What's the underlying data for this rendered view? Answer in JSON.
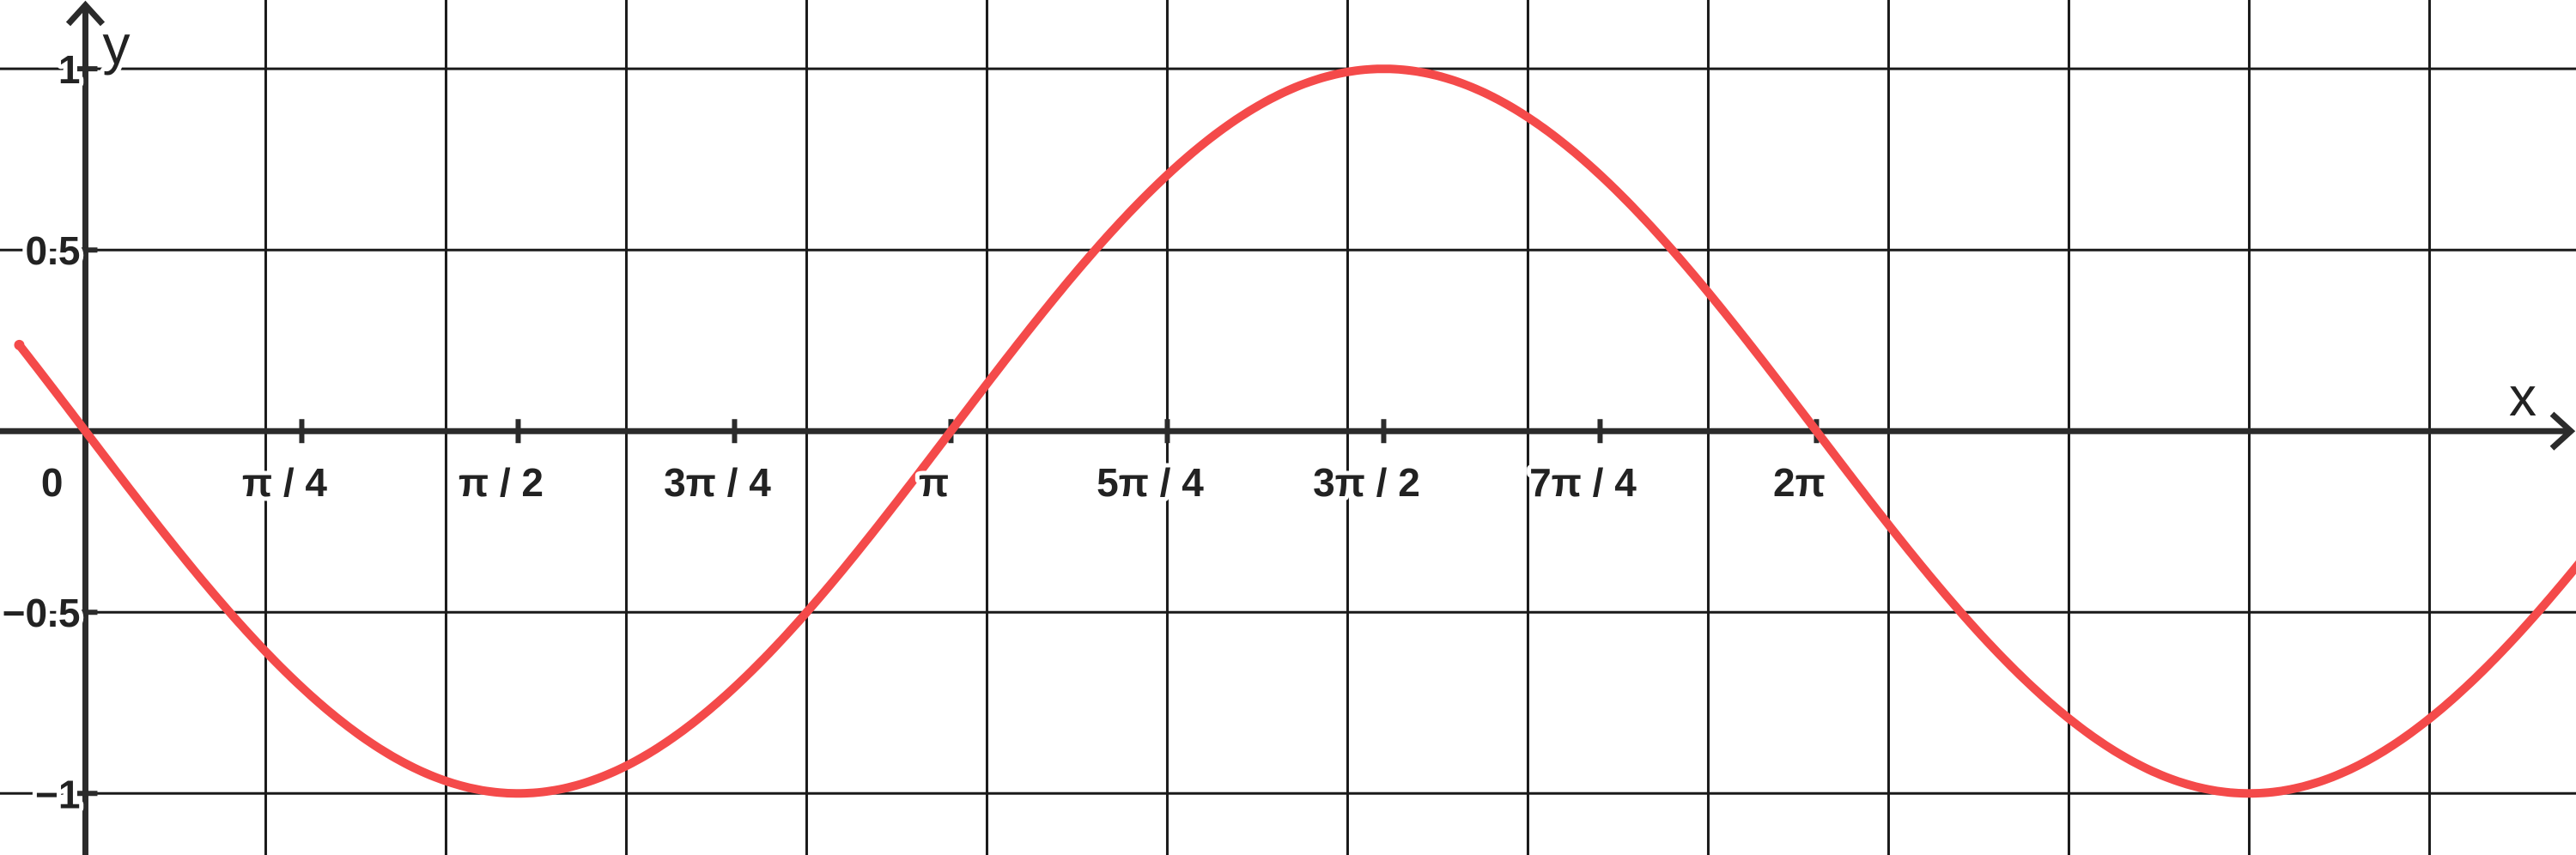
{
  "chart_data": {
    "type": "line",
    "function": "y = cos(x + π/2)",
    "xlabel": "x",
    "ylabel": "y",
    "xlim": [
      -0.31,
      9.04
    ],
    "ylim": [
      -1.17,
      1.19
    ],
    "grid": true,
    "x_grid_step": 0.6545,
    "y_grid_step": 0.5,
    "x_ticks": [
      {
        "value": 0.7854,
        "label": "π / 4"
      },
      {
        "value": 1.5708,
        "label": "π / 2"
      },
      {
        "value": 2.3562,
        "label": "3π / 4"
      },
      {
        "value": 3.1416,
        "label": "π"
      },
      {
        "value": 3.927,
        "label": "5π / 4"
      },
      {
        "value": 4.7124,
        "label": "3π / 2"
      },
      {
        "value": 5.4978,
        "label": "7π / 4"
      },
      {
        "value": 6.2832,
        "label": "2π"
      }
    ],
    "y_ticks": [
      {
        "value": 1,
        "label": "1"
      },
      {
        "value": 0.5,
        "label": "0.5"
      },
      {
        "value": -0.5,
        "label": "−0.5"
      },
      {
        "value": -1,
        "label": "−1"
      }
    ],
    "origin_label": "0",
    "series": [
      {
        "color": "#f44a4a",
        "x": [
          -0.24,
          0,
          0.5236,
          0.7854,
          1.0472,
          1.5708,
          2.0944,
          2.3562,
          2.618,
          3.1416,
          3.6652,
          3.927,
          4.1888,
          4.7124,
          5.236,
          5.4978,
          5.7596,
          6.2832,
          6.8068
        ],
        "y": [
          0.24,
          0,
          -0.5,
          -0.71,
          -0.87,
          -1,
          -0.87,
          -0.71,
          -0.5,
          0,
          0.5,
          0.71,
          0.87,
          1,
          0.87,
          0.71,
          0.5,
          0,
          -0.5
        ]
      }
    ]
  }
}
